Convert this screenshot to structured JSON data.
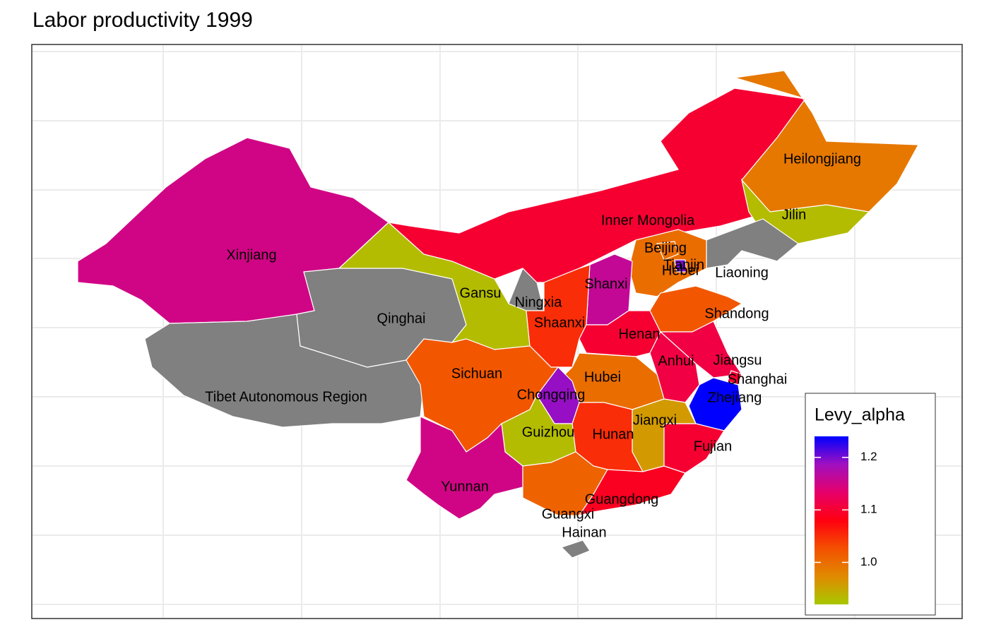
{
  "chart_data": {
    "type": "choropleth",
    "title": "Labor productivity 1999",
    "legend_title": "Levy_alpha",
    "categories": [
      "Xinjiang",
      "Tibet Autonomous Region",
      "Qinghai",
      "Gansu",
      "Ningxia",
      "Inner Mongolia",
      "Heilongjiang",
      "Jilin",
      "Liaoning",
      "Hebei",
      "Beijing",
      "Tianjin",
      "Shanxi",
      "Shaanxi",
      "Henan",
      "Shandong",
      "Jiangsu",
      "Anhui",
      "Shanghai",
      "Zhejiang",
      "Fujian",
      "Jiangxi",
      "Hubei",
      "Hunan",
      "Chongqing",
      "Sichuan",
      "Guizhou",
      "Yunnan",
      "Guangxi",
      "Guangdong",
      "Hainan"
    ],
    "values": [
      1.15,
      null,
      null,
      0.93,
      null,
      1.1,
      0.99,
      0.93,
      null,
      1.0,
      1.0,
      1.2,
      1.16,
      1.05,
      1.1,
      1.02,
      1.11,
      1.11,
      1.1,
      1.24,
      1.1,
      0.96,
      1.0,
      1.05,
      1.19,
      1.02,
      0.93,
      1.15,
      1.01,
      1.09,
      null
    ],
    "colors": [
      "#a8c800",
      "#e08a00",
      "#f45000",
      "#ff0010",
      "#e6006a",
      "#a010c0",
      "#0000ff"
    ],
    "missing_color": "#808080",
    "colorbar_lim": [
      0.92,
      1.24
    ],
    "colorbar_ticks": [
      {
        "value": 1,
        "label": "1.0"
      },
      1.1,
      1.2
    ],
    "grid": true
  }
}
